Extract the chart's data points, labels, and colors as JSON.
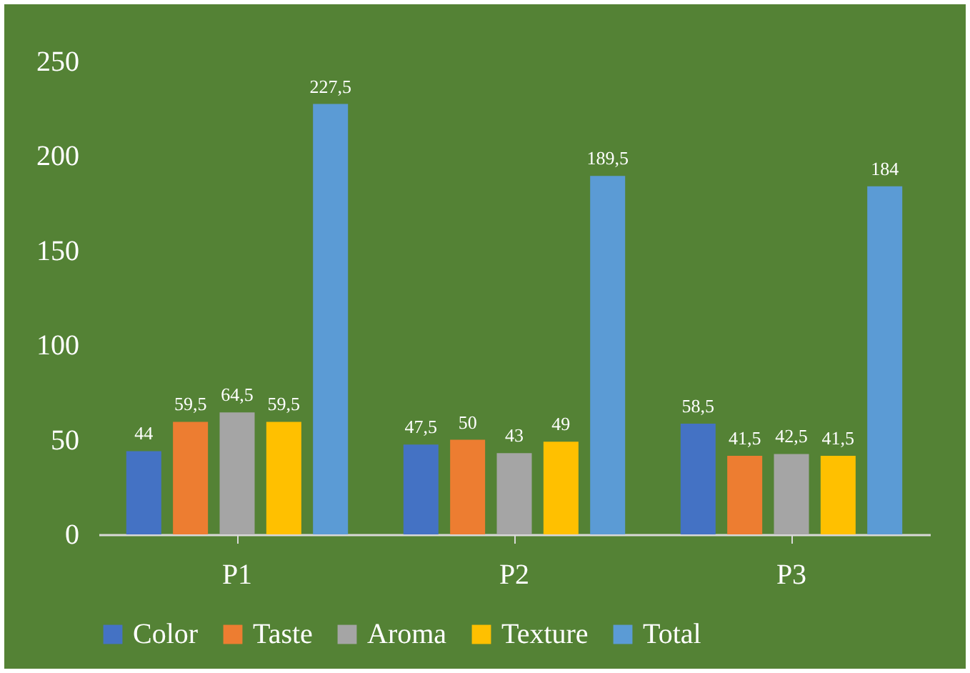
{
  "chart_data": {
    "type": "bar",
    "categories": [
      "P1",
      "P2",
      "P3"
    ],
    "series": [
      {
        "name": "Color",
        "color": "#4472c4",
        "values": [
          44,
          47.5,
          58.5
        ],
        "value_labels": [
          "44",
          "47,5",
          "58,5"
        ]
      },
      {
        "name": "Taste",
        "color": "#ed7d31",
        "values": [
          59.5,
          50,
          41.5
        ],
        "value_labels": [
          "59,5",
          "50",
          "41,5"
        ]
      },
      {
        "name": "Aroma",
        "color": "#a5a5a5",
        "values": [
          64.5,
          43,
          42.5
        ],
        "value_labels": [
          "64,5",
          "43",
          "42,5"
        ]
      },
      {
        "name": "Texture",
        "color": "#ffc000",
        "values": [
          59.5,
          49,
          41.5
        ],
        "value_labels": [
          "59,5",
          "49",
          "41,5"
        ]
      },
      {
        "name": "Total",
        "color": "#5b9bd5",
        "values": [
          227.5,
          189.5,
          184
        ],
        "value_labels": [
          "227,5",
          "189,5",
          "184"
        ]
      }
    ],
    "ylim": [
      0,
      250
    ],
    "yticks": [
      0,
      50,
      100,
      150,
      200,
      250
    ],
    "grid": false,
    "legend": "bottom"
  }
}
